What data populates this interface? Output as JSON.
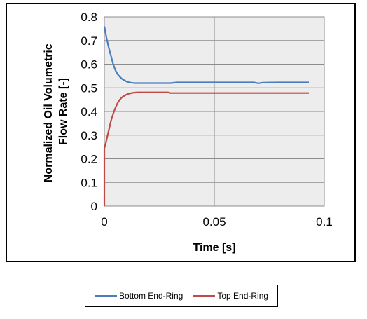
{
  "chart_data": {
    "type": "line",
    "title": "",
    "xlabel": "Time [s]",
    "ylabel_lines": [
      "Normalized Oil Volumetric",
      "Flow Rate [-]"
    ],
    "xlim": [
      0,
      0.1
    ],
    "ylim": [
      0,
      0.8
    ],
    "xticks": [
      0,
      0.05,
      0.1
    ],
    "xtick_labels": [
      "0",
      "0.05",
      "0.1"
    ],
    "yticks": [
      0,
      0.1,
      0.2,
      0.3,
      0.4,
      0.5,
      0.6,
      0.7,
      0.8
    ],
    "ytick_labels": [
      "0",
      "0.1",
      "0.2",
      "0.3",
      "0.4",
      "0.5",
      "0.6",
      "0.7",
      "0.8"
    ],
    "grid": true,
    "legend_position": "bottom",
    "series": [
      {
        "name": "Bottom End-Ring",
        "color": "#4a7ebb",
        "x": [
          0,
          0.0005,
          0.001,
          0.0015,
          0.002,
          0.003,
          0.004,
          0.005,
          0.006,
          0.007,
          0.008,
          0.009,
          0.01,
          0.011,
          0.012,
          0.013,
          0.014,
          0.015,
          0.02,
          0.03,
          0.033,
          0.04,
          0.05,
          0.06,
          0.068,
          0.07,
          0.072,
          0.08,
          0.093
        ],
        "y": [
          0.76,
          0.735,
          0.71,
          0.69,
          0.67,
          0.635,
          0.6,
          0.575,
          0.558,
          0.547,
          0.538,
          0.532,
          0.527,
          0.524,
          0.522,
          0.521,
          0.52,
          0.52,
          0.52,
          0.52,
          0.523,
          0.523,
          0.523,
          0.523,
          0.523,
          0.519,
          0.522,
          0.523,
          0.523
        ]
      },
      {
        "name": "Top End-Ring",
        "color": "#be4b48",
        "x": [
          0,
          0,
          0.0005,
          0.001,
          0.0015,
          0.002,
          0.003,
          0.004,
          0.005,
          0.006,
          0.007,
          0.008,
          0.009,
          0.01,
          0.011,
          0.012,
          0.013,
          0.014,
          0.015,
          0.02,
          0.029,
          0.03,
          0.05,
          0.07,
          0.093
        ],
        "y": [
          0,
          0.245,
          0.26,
          0.28,
          0.3,
          0.32,
          0.36,
          0.39,
          0.415,
          0.435,
          0.45,
          0.46,
          0.466,
          0.471,
          0.475,
          0.477,
          0.479,
          0.48,
          0.481,
          0.481,
          0.481,
          0.478,
          0.478,
          0.478,
          0.478
        ]
      }
    ]
  }
}
